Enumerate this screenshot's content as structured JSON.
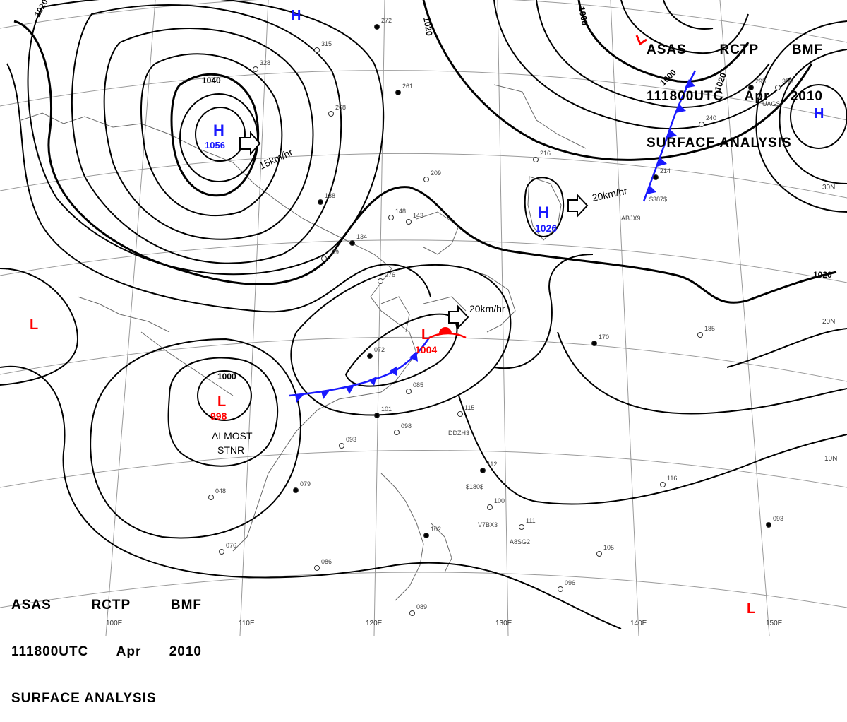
{
  "header": {
    "agency": "ASAS",
    "station": "RCTP",
    "center": "BMF",
    "time": "111800UTC",
    "month": "Apr",
    "year": "2010",
    "title": "SURFACE ANALYSIS"
  },
  "isobar_labels": [
    "1020",
    "1020",
    "1000",
    "1040",
    "1000",
    "1020",
    "1020",
    "1000"
  ],
  "lat_labels": [
    "30N",
    "20N",
    "10N"
  ],
  "lon_labels": [
    "100E",
    "110E",
    "120E",
    "130E",
    "140E",
    "150E"
  ],
  "pressure_centers": [
    {
      "type": "H",
      "value": "1056"
    },
    {
      "type": "H",
      "value": "1026"
    },
    {
      "type": "L",
      "value": "1004"
    },
    {
      "type": "L",
      "value": "998"
    },
    {
      "type": "H",
      "value": ""
    },
    {
      "type": "H",
      "value": ""
    },
    {
      "type": "L",
      "value": ""
    },
    {
      "type": "L",
      "value": ""
    }
  ],
  "motions": [
    "15km/hr",
    "20km/hr",
    "20km/hr"
  ],
  "annotations": [
    "ALMOST",
    "STNR"
  ],
  "station_samples": [
    "272",
    "315",
    "328",
    "261",
    "268",
    "209",
    "188",
    "148",
    "143",
    "134",
    "109",
    "076",
    "072",
    "085",
    "093",
    "101",
    "098",
    "115",
    "112",
    "100",
    "111",
    "102",
    "089",
    "086",
    "079",
    "048",
    "076",
    "170",
    "185",
    "116",
    "093",
    "105",
    "096",
    "214",
    "216",
    "240",
    "295",
    "350"
  ],
  "ship_ids": [
    "ABJX9",
    "$387$",
    "DDZH3",
    "$180$",
    "V7BX3",
    "A8SG2",
    "UAGS"
  ],
  "colors": {
    "high": "#1a1aff",
    "low": "#ff0000",
    "cold_front": "#1a1aff",
    "warm_front": "#ff0000",
    "isobar": "#000000",
    "coast": "#555555"
  }
}
